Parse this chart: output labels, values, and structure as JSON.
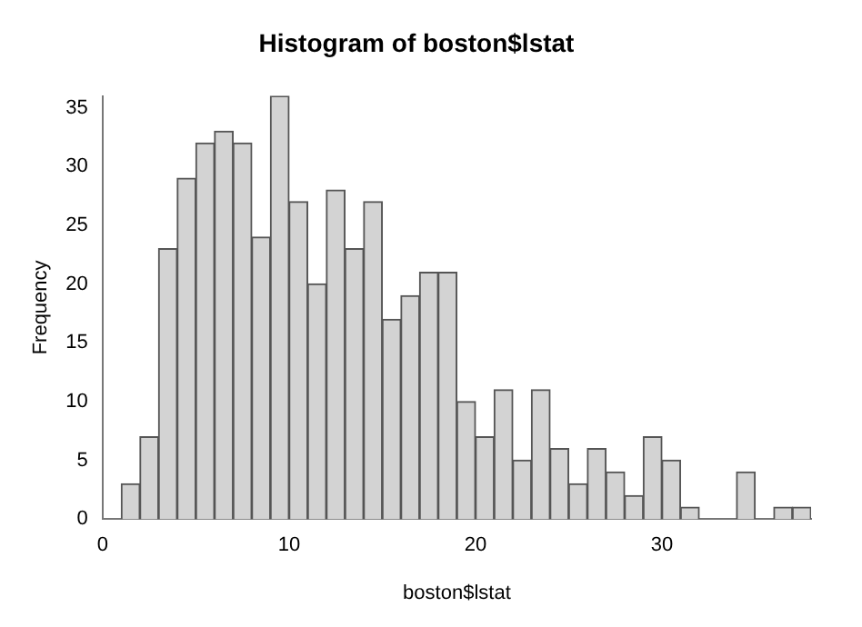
{
  "chart_data": {
    "type": "histogram",
    "title": "Histogram of boston$lstat",
    "xlabel": "boston$lstat",
    "ylabel": "Frequency",
    "bins": [
      1,
      2,
      3,
      4,
      5,
      6,
      7,
      8,
      9,
      10,
      11,
      12,
      13,
      14,
      15,
      16,
      17,
      18,
      19,
      20,
      21,
      22,
      23,
      24,
      25,
      26,
      27,
      28,
      29,
      30,
      31,
      32,
      33,
      34,
      35,
      36,
      37,
      38
    ],
    "values": [
      3,
      7,
      23,
      29,
      32,
      33,
      32,
      24,
      36,
      27,
      20,
      28,
      23,
      27,
      17,
      19,
      21,
      21,
      10,
      7,
      11,
      5,
      11,
      6,
      3,
      6,
      4,
      2,
      7,
      5,
      1,
      0,
      0,
      4,
      0,
      1,
      1
    ],
    "color": "#d3d3d3",
    "xlim": [
      0,
      38
    ],
    "xticks": [
      0,
      10,
      20,
      30
    ],
    "ylim": [
      0,
      36
    ],
    "yticks": [
      0,
      5,
      10,
      15,
      20,
      25,
      30,
      35
    ],
    "grid": false,
    "legend": false
  }
}
